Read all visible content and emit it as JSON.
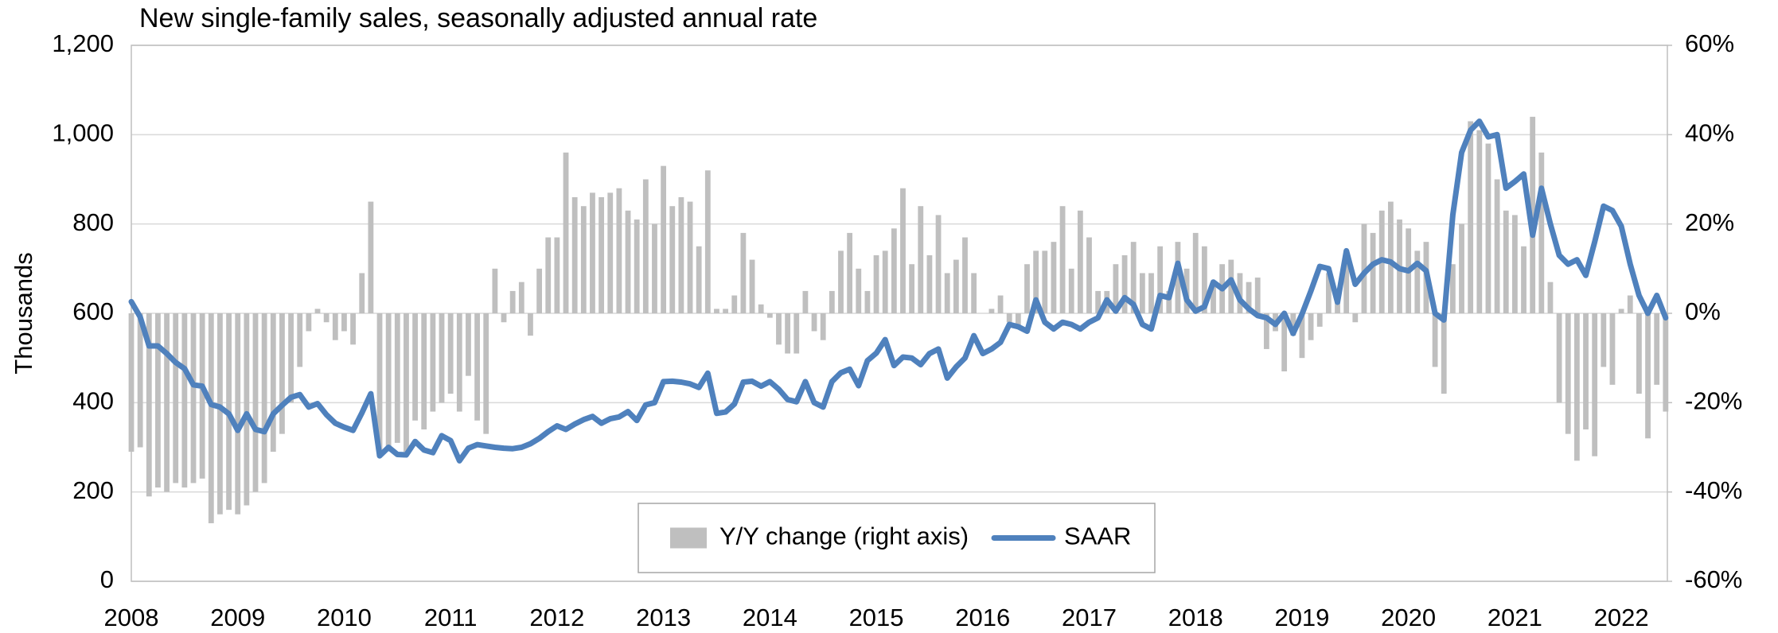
{
  "chart_data": {
    "type": "combo",
    "title": "New single-family sales, seasonally adjusted annual rate",
    "y_label": "Thousands",
    "categories": [
      "2008",
      null,
      null,
      null,
      null,
      null,
      null,
      null,
      null,
      null,
      null,
      null,
      "2009",
      null,
      null,
      null,
      null,
      null,
      null,
      null,
      null,
      null,
      null,
      null,
      "2010",
      null,
      null,
      null,
      null,
      null,
      null,
      null,
      null,
      null,
      null,
      null,
      "2011",
      null,
      null,
      null,
      null,
      null,
      null,
      null,
      null,
      null,
      null,
      null,
      "2012",
      null,
      null,
      null,
      null,
      null,
      null,
      null,
      null,
      null,
      null,
      null,
      "2013",
      null,
      null,
      null,
      null,
      null,
      null,
      null,
      null,
      null,
      null,
      null,
      "2014",
      null,
      null,
      null,
      null,
      null,
      null,
      null,
      null,
      null,
      null,
      null,
      "2015",
      null,
      null,
      null,
      null,
      null,
      null,
      null,
      null,
      null,
      null,
      null,
      "2016",
      null,
      null,
      null,
      null,
      null,
      null,
      null,
      null,
      null,
      null,
      null,
      "2017",
      null,
      null,
      null,
      null,
      null,
      null,
      null,
      null,
      null,
      null,
      null,
      "2018",
      null,
      null,
      null,
      null,
      null,
      null,
      null,
      null,
      null,
      null,
      null,
      "2019",
      null,
      null,
      null,
      null,
      null,
      null,
      null,
      null,
      null,
      null,
      null,
      "2020",
      null,
      null,
      null,
      null,
      null,
      null,
      null,
      null,
      null,
      null,
      null,
      "2021",
      null,
      null,
      null,
      null,
      null,
      null,
      null,
      null,
      null,
      null,
      null,
      "2022",
      null,
      null,
      null,
      null,
      null
    ],
    "series": [
      {
        "name": "Y/Y change (right axis)",
        "type": "bar",
        "axis": "y2",
        "color": "#bfbfbf",
        "values": [
          -31,
          -30,
          -41,
          -39,
          -40,
          -38,
          -39,
          -38,
          -37,
          -47,
          -45,
          -44,
          -45,
          -43,
          -40,
          -38,
          -31,
          -27,
          -20,
          -12,
          -4,
          1,
          -2,
          -6,
          -4,
          -7,
          9,
          25,
          -32,
          -30,
          -29,
          -31,
          -24,
          -26,
          -22,
          -20,
          -18,
          -22,
          -14,
          -24,
          -27,
          10,
          -2,
          5,
          7,
          -5,
          10,
          17,
          17,
          36,
          26,
          24,
          27,
          26,
          27,
          28,
          23,
          21,
          30,
          20,
          33,
          24,
          26,
          25,
          15,
          32,
          1,
          1,
          4,
          18,
          12,
          2,
          -1,
          -7,
          -9,
          -9,
          5,
          -4,
          -6,
          5,
          14,
          18,
          10,
          5,
          13,
          14,
          19,
          28,
          11,
          24,
          13,
          22,
          9,
          12,
          17,
          9,
          0,
          1,
          4,
          -2,
          -3,
          11,
          14,
          14,
          16,
          24,
          10,
          23,
          17,
          5,
          5,
          11,
          13,
          16,
          9,
          9,
          15,
          5,
          16,
          10,
          18,
          15,
          7,
          11,
          12,
          9,
          7,
          8,
          -8,
          -4,
          -13,
          -5,
          -10,
          -6,
          -3,
          9,
          4,
          14,
          -2,
          20,
          18,
          23,
          25,
          21,
          19,
          14,
          16,
          -12,
          -18,
          11,
          20,
          43,
          41,
          38,
          30,
          23,
          22,
          15,
          44,
          36,
          7,
          -20,
          -27,
          -33,
          -26,
          -32,
          -12,
          -16,
          1,
          4,
          -18,
          -28,
          -16,
          -22
        ]
      },
      {
        "name": "SAAR",
        "type": "line",
        "axis": "y",
        "color": "#4f81bd",
        "values": [
          626,
          592,
          527,
          527,
          510,
          490,
          476,
          440,
          437,
          396,
          390,
          375,
          338,
          375,
          340,
          335,
          375,
          394,
          412,
          418,
          390,
          398,
          373,
          354,
          345,
          338,
          377,
          420,
          281,
          300,
          284,
          283,
          313,
          294,
          288,
          326,
          315,
          270,
          298,
          306,
          303,
          300,
          298,
          297,
          300,
          308,
          320,
          335,
          348,
          340,
          352,
          362,
          369,
          354,
          364,
          368,
          380,
          360,
          395,
          400,
          447,
          448,
          446,
          442,
          434,
          466,
          376,
          379,
          397,
          446,
          448,
          437,
          447,
          430,
          407,
          402,
          447,
          400,
          390,
          447,
          467,
          475,
          438,
          494,
          511,
          541,
          483,
          502,
          500,
          485,
          510,
          520,
          455,
          480,
          500,
          550,
          510,
          520,
          535,
          575,
          570,
          560,
          630,
          580,
          565,
          580,
          575,
          565,
          580,
          590,
          630,
          605,
          635,
          620,
          575,
          565,
          640,
          635,
          712,
          630,
          605,
          615,
          670,
          655,
          675,
          630,
          610,
          595,
          590,
          575,
          600,
          555,
          598,
          650,
          705,
          700,
          625,
          740,
          665,
          690,
          710,
          720,
          715,
          700,
          695,
          712,
          695,
          600,
          585,
          820,
          960,
          1010,
          1030,
          995,
          1000,
          880,
          895,
          912,
          775,
          880,
          800,
          730,
          710,
          720,
          685,
          760,
          840,
          830,
          795,
          710,
          640,
          600,
          640,
          590
        ]
      }
    ],
    "ylim": [
      0,
      1200
    ],
    "yticks": [
      0,
      200,
      400,
      600,
      800,
      {
        "value": 1000,
        "label": "1,000"
      },
      {
        "value": 1200,
        "label": "1,200"
      }
    ],
    "y2lim": [
      -60,
      60
    ],
    "y2ticks": [
      {
        "value": -60,
        "label": "-60%"
      },
      {
        "value": -40,
        "label": "-40%"
      },
      {
        "value": -20,
        "label": "-20%"
      },
      {
        "value": 0,
        "label": "0%"
      },
      {
        "value": 20,
        "label": "20%"
      },
      {
        "value": 40,
        "label": "40%"
      },
      {
        "value": 60,
        "label": "60%"
      }
    ],
    "grid": true,
    "legend": "bottom"
  }
}
